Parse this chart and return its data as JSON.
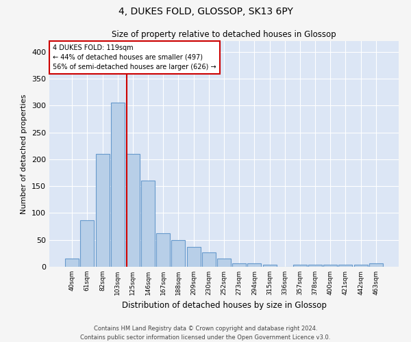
{
  "title": "4, DUKES FOLD, GLOSSOP, SK13 6PY",
  "subtitle": "Size of property relative to detached houses in Glossop",
  "xlabel": "Distribution of detached houses by size in Glossop",
  "ylabel": "Number of detached properties",
  "footer_line1": "Contains HM Land Registry data © Crown copyright and database right 2024.",
  "footer_line2": "Contains public sector information licensed under the Open Government Licence v3.0.",
  "bin_labels": [
    "40sqm",
    "61sqm",
    "82sqm",
    "103sqm",
    "125sqm",
    "146sqm",
    "167sqm",
    "188sqm",
    "209sqm",
    "230sqm",
    "252sqm",
    "273sqm",
    "294sqm",
    "315sqm",
    "336sqm",
    "357sqm",
    "378sqm",
    "400sqm",
    "421sqm",
    "442sqm",
    "463sqm"
  ],
  "bar_values": [
    15,
    87,
    210,
    305,
    210,
    160,
    62,
    50,
    37,
    27,
    15,
    7,
    7,
    4,
    0,
    4,
    4,
    4,
    4,
    4,
    7
  ],
  "bar_color": "#b8cfe8",
  "bar_edge_color": "#6699cc",
  "bg_color": "#dce6f5",
  "grid_color": "#ffffff",
  "vline_color": "#cc0000",
  "annotation_box_color": "#cc0000",
  "annotation_line1": "4 DUKES FOLD: 119sqm",
  "annotation_line2": "← 44% of detached houses are smaller (497)",
  "annotation_line3": "56% of semi-detached houses are larger (626) →",
  "ylim": [
    0,
    420
  ],
  "yticks": [
    0,
    50,
    100,
    150,
    200,
    250,
    300,
    350,
    400
  ],
  "fig_bg": "#f5f5f5"
}
